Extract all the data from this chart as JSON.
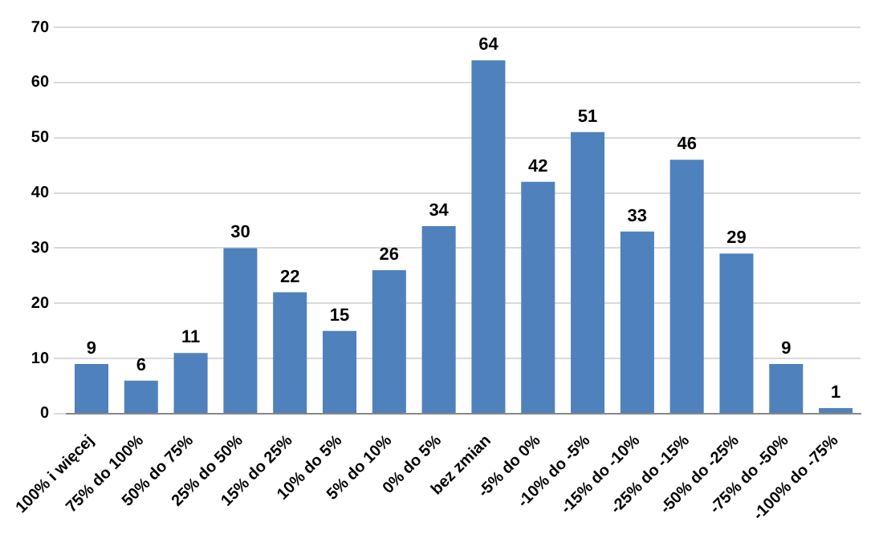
{
  "chart_data": {
    "type": "bar",
    "categories": [
      "100% i więcej",
      "75% do 100%",
      "50% do 75%",
      "25% do 50%",
      "15% do 25%",
      "10% do 5%",
      "5% do 10%",
      "0% do 5%",
      "bez zmian",
      "-5% do 0%",
      "-10% do -5%",
      "-15% do -10%",
      "-25% do -15%",
      "-50% do -25%",
      "-75% do -50%",
      "-100% do -75%"
    ],
    "values": [
      9,
      6,
      11,
      30,
      22,
      15,
      26,
      34,
      64,
      42,
      51,
      33,
      46,
      29,
      9,
      1
    ],
    "color": "#4f81bd",
    "ylim": [
      0,
      70
    ],
    "yticks": [
      0,
      10,
      20,
      30,
      40,
      50,
      60,
      70
    ],
    "grid": "y",
    "data_labels": true,
    "legend": false
  }
}
